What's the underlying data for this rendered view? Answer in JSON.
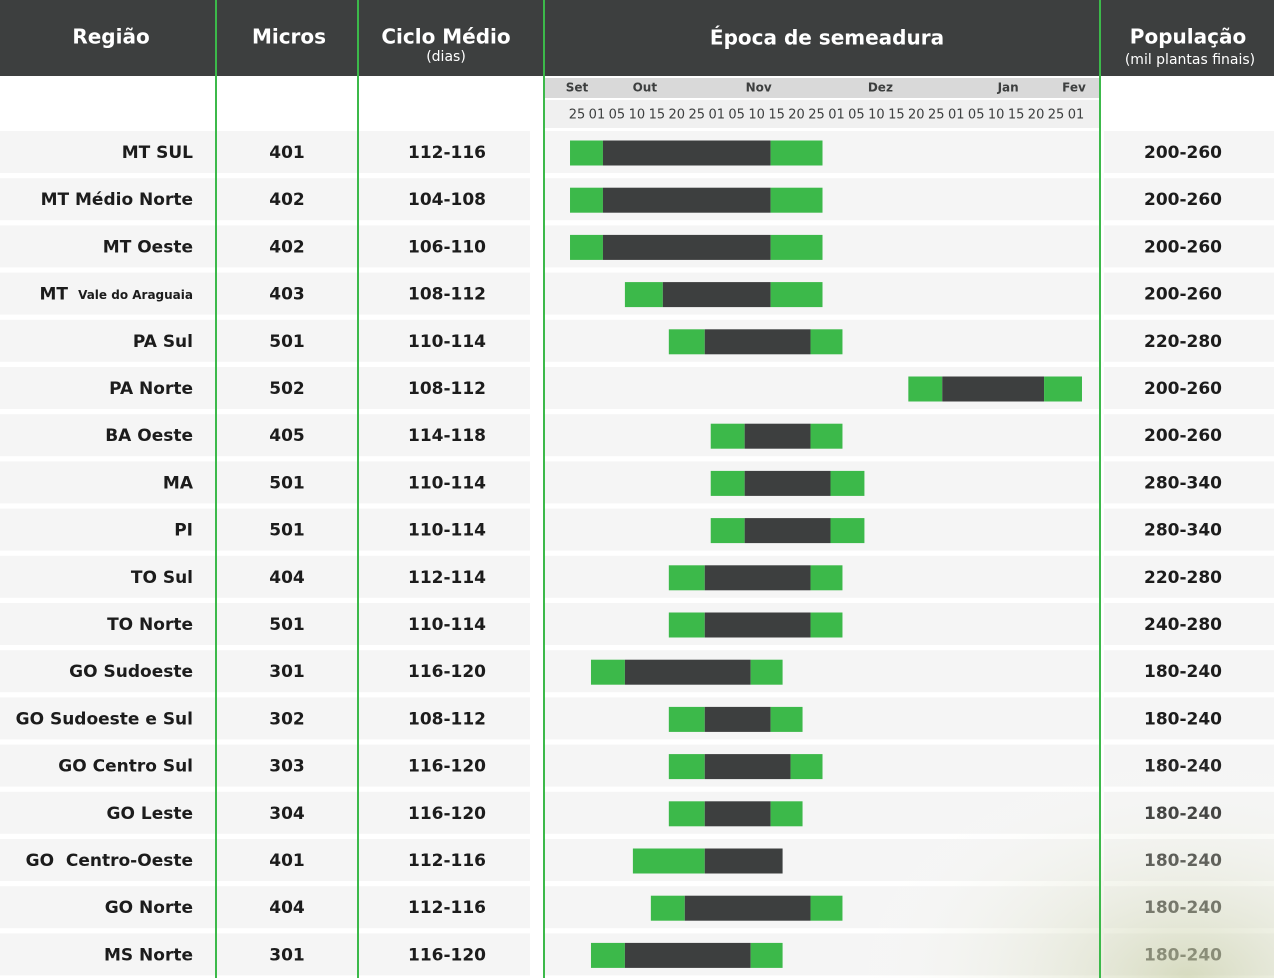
{
  "header": {
    "regiao": "Região",
    "micros": "Micros",
    "ciclo": "Ciclo Médio",
    "ciclo_sub": "(dias)",
    "epoca": "Época de semeadura",
    "populacao": "População",
    "populacao_sub": "(mil plantas finais)"
  },
  "timeline": {
    "months": [
      {
        "label": "Set",
        "at": 0
      },
      {
        "label": "Out",
        "at": 3.4
      },
      {
        "label": "Nov",
        "at": 9.1
      },
      {
        "label": "Dez",
        "at": 15.2
      },
      {
        "label": "Jan",
        "at": 21.6
      },
      {
        "label": "Fev",
        "at": 24.9
      }
    ],
    "ticks": [
      "25",
      "01",
      "05",
      "10",
      "15",
      "20",
      "25",
      "01",
      "05",
      "10",
      "15",
      "20",
      "25",
      "01",
      "05",
      "10",
      "15",
      "20",
      "25",
      "01",
      "05",
      "10",
      "15",
      "20",
      "25",
      "01"
    ],
    "green": "#3cb94a",
    "dark": "#3d3f3f"
  },
  "rows": [
    {
      "region": "MT SUL",
      "micros": "401",
      "ciclo": "112-116",
      "populacao": "200-260",
      "bar": [
        -0.35,
        1.3,
        9.7,
        12.3
      ]
    },
    {
      "region": "MT Médio Norte",
      "micros": "402",
      "ciclo": "104-108",
      "populacao": "200-260",
      "bar": [
        -0.35,
        1.3,
        9.7,
        12.3
      ]
    },
    {
      "region": "MT Oeste",
      "micros": "402",
      "ciclo": "106-110",
      "populacao": "200-260",
      "bar": [
        -0.35,
        1.3,
        9.7,
        12.3
      ]
    },
    {
      "region": "MT",
      "region_sub": "Vale do Araguaia",
      "micros": "403",
      "ciclo": "108-112",
      "populacao": "200-260",
      "bar": [
        2.4,
        4.3,
        9.7,
        12.3
      ]
    },
    {
      "region": "PA Sul",
      "micros": "501",
      "ciclo": "110-114",
      "populacao": "220-280",
      "bar": [
        4.6,
        6.4,
        11.7,
        13.3
      ]
    },
    {
      "region": "PA Norte",
      "micros": "502",
      "ciclo": "108-112",
      "populacao": "200-260",
      "bar": [
        16.6,
        18.3,
        23.4,
        25.3
      ]
    },
    {
      "region": "BA Oeste",
      "micros": "405",
      "ciclo": "114-118",
      "populacao": "200-260",
      "bar": [
        6.7,
        8.4,
        11.7,
        13.3
      ]
    },
    {
      "region": "MA",
      "micros": "501",
      "ciclo": "110-114",
      "populacao": "280-340",
      "bar": [
        6.7,
        8.4,
        12.7,
        14.4
      ]
    },
    {
      "region": "PI",
      "micros": "501",
      "ciclo": "110-114",
      "populacao": "280-340",
      "bar": [
        6.7,
        8.4,
        12.7,
        14.4
      ]
    },
    {
      "region": "TO Sul",
      "micros": "404",
      "ciclo": "112-114",
      "populacao": "220-280",
      "bar": [
        4.6,
        6.4,
        11.7,
        13.3
      ]
    },
    {
      "region": "TO Norte",
      "micros": "501",
      "ciclo": "110-114",
      "populacao": "240-280",
      "bar": [
        4.6,
        6.4,
        11.7,
        13.3
      ]
    },
    {
      "region": "GO Sudoeste",
      "micros": "301",
      "ciclo": "116-120",
      "populacao": "180-240",
      "bar": [
        0.7,
        2.4,
        8.7,
        10.3
      ]
    },
    {
      "region": "GO Sudoeste e Sul",
      "micros": "302",
      "ciclo": "108-112",
      "populacao": "180-240",
      "bar": [
        4.6,
        6.4,
        9.7,
        11.3
      ]
    },
    {
      "region": "GO Centro Sul",
      "micros": "303",
      "ciclo": "116-120",
      "populacao": "180-240",
      "bar": [
        4.6,
        6.4,
        10.7,
        12.3
      ]
    },
    {
      "region": "GO Leste",
      "micros": "304",
      "ciclo": "116-120",
      "populacao": "180-240",
      "bar": [
        4.6,
        6.4,
        9.7,
        11.3
      ]
    },
    {
      "region": "GO  Centro-Oeste",
      "micros": "401",
      "ciclo": "112-116",
      "populacao": "180-240",
      "bar": [
        2.8,
        6.4,
        10.3,
        null
      ]
    },
    {
      "region": "GO Norte",
      "micros": "404",
      "ciclo": "112-116",
      "populacao": "180-240",
      "bar": [
        3.7,
        5.4,
        11.7,
        13.3
      ]
    },
    {
      "region": "MS Norte",
      "micros": "301",
      "ciclo": "116-120",
      "populacao": "180-240",
      "bar": [
        0.7,
        2.4,
        8.7,
        10.3
      ]
    }
  ]
}
